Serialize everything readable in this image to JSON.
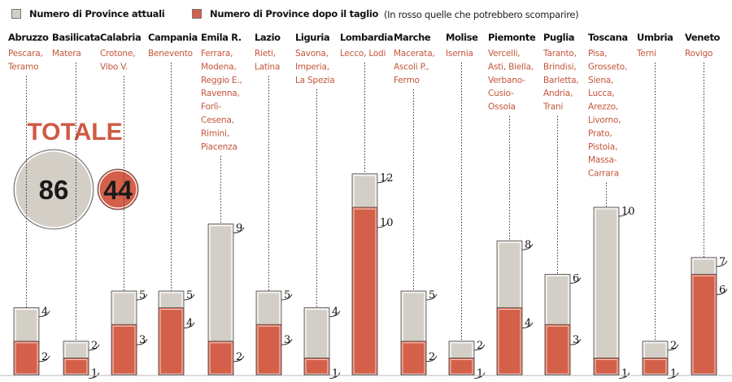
{
  "legend": {
    "current_label": "Numero di Province attuali",
    "current_color": "#d3cfc7",
    "after_label": "Numero di Province dopo il taglio",
    "after_color": "#d4604a",
    "note": "(In rosso quelle che potrebbero scomparire)"
  },
  "totals": {
    "title": "TOTALE",
    "current": "86",
    "after": "44"
  },
  "chart_data": {
    "type": "bar",
    "title": "",
    "xlabel": "",
    "ylabel": "",
    "ylim": [
      0,
      12
    ],
    "grid": false,
    "legend_position": "top-left",
    "categories": [
      "Abruzzo",
      "Basilicata",
      "Calabria",
      "Campania",
      "Emila R.",
      "Lazio",
      "Liguria",
      "Lombardia",
      "Marche",
      "Molise",
      "Piemonte",
      "Puglia",
      "Toscana",
      "Umbria",
      "Veneto"
    ],
    "series": [
      {
        "name": "Numero di Province attuali",
        "color": "#d3cfc7",
        "values": [
          4,
          2,
          5,
          5,
          9,
          5,
          4,
          12,
          5,
          2,
          8,
          6,
          10,
          2,
          7
        ]
      },
      {
        "name": "Numero di Province dopo il taglio",
        "color": "#d4604a",
        "values": [
          2,
          1,
          3,
          4,
          2,
          3,
          1,
          10,
          2,
          1,
          4,
          3,
          1,
          1,
          6
        ]
      }
    ],
    "annotations": [
      [
        "Pescara,",
        "Teramo"
      ],
      [
        "Matera"
      ],
      [
        "Crotone,",
        "Vibo V."
      ],
      [
        "Benevento"
      ],
      [
        "Ferrara,",
        "Modena,",
        "Reggio E.,",
        "Ravenna,",
        "Forlì-",
        "Cesena,",
        "Rimini,",
        "Piacenza"
      ],
      [
        "Rieti,",
        "Latina"
      ],
      [
        "Savona,",
        "Imperia,",
        "La Spezia"
      ],
      [
        "Lecco, Lodi"
      ],
      [
        "Macerata,",
        "Ascoli P.,",
        "Fermo"
      ],
      [
        "Isernia"
      ],
      [
        "Vercelli,",
        "Asti, Biella,",
        "Verbano-",
        "Cusio-",
        "Ossola"
      ],
      [
        "Taranto,",
        "Brindisi,",
        "Barletta,",
        "Andria,",
        "Trani"
      ],
      [
        "Pisa,",
        "Grosseto,",
        "Siena,",
        "Lucca,",
        "Arezzo,",
        "Livorno,",
        "Prato,",
        "Pistoia,",
        "Massa-",
        "Carrara"
      ],
      [
        "Terni"
      ],
      [
        "Rovigo"
      ]
    ]
  }
}
